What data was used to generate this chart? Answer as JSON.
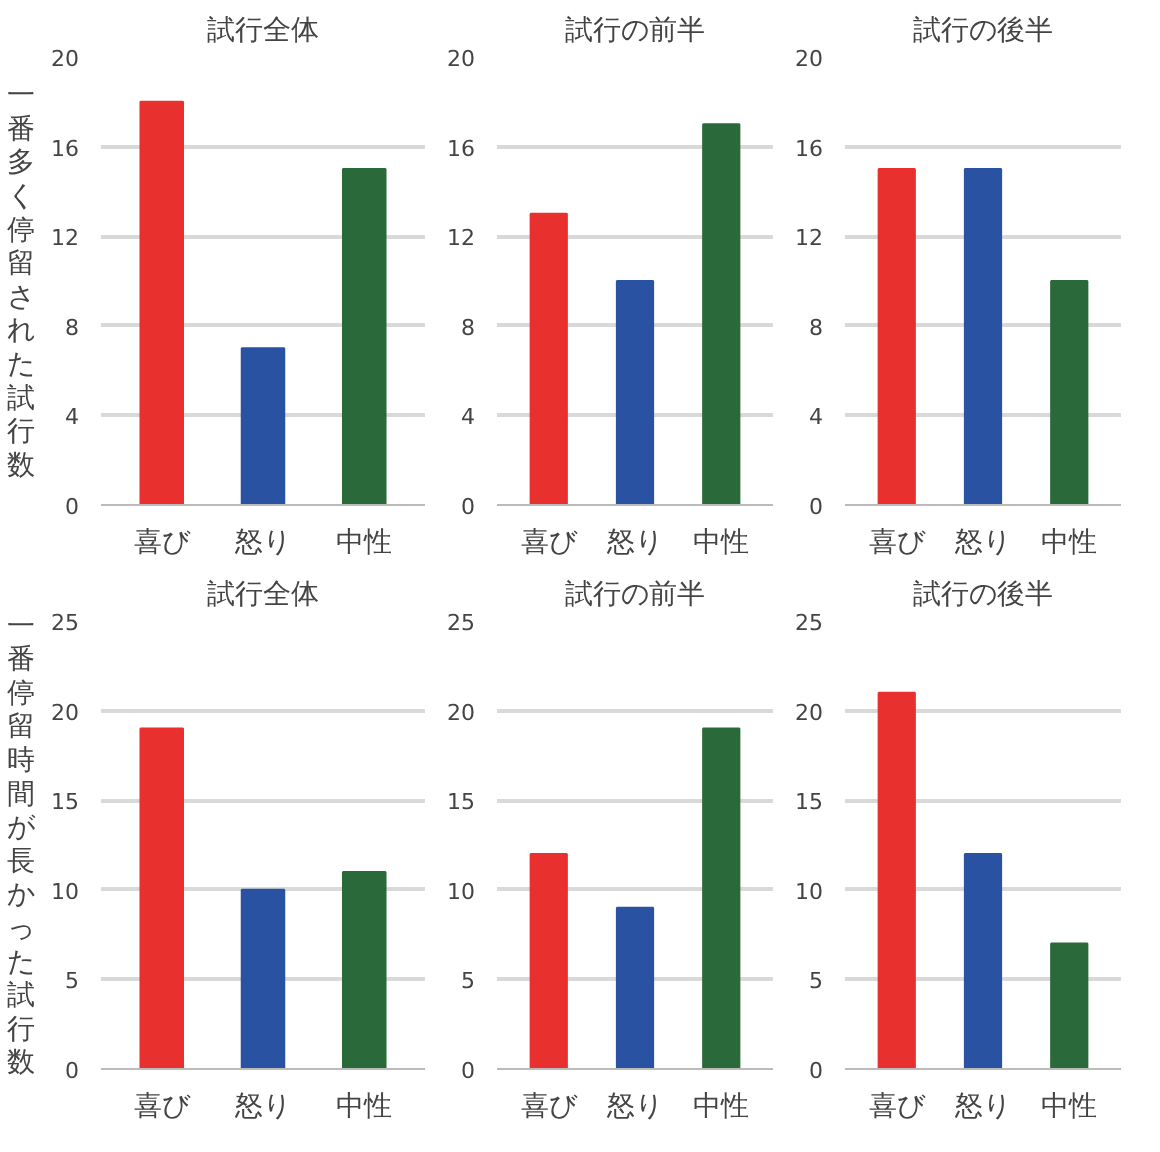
{
  "chart_data": [
    {
      "type": "bar",
      "title": "試行全体",
      "ylabel": "一番多く停留された試行数",
      "categories": [
        "喜び",
        "怒り",
        "中性"
      ],
      "values": [
        18,
        7,
        15
      ],
      "colors": [
        "#e8302e",
        "#2a52a3",
        "#2a6a3a"
      ],
      "ylim": [
        0,
        20
      ],
      "yticks": [
        0,
        4,
        8,
        12,
        16,
        20
      ],
      "grid": "y"
    },
    {
      "type": "bar",
      "title": "試行の前半",
      "categories": [
        "喜び",
        "怒り",
        "中性"
      ],
      "values": [
        13,
        10,
        17
      ],
      "colors": [
        "#e8302e",
        "#2a52a3",
        "#2a6a3a"
      ],
      "ylim": [
        0,
        20
      ],
      "yticks": [
        0,
        4,
        8,
        12,
        16,
        20
      ],
      "grid": "y"
    },
    {
      "type": "bar",
      "title": "試行の後半",
      "categories": [
        "喜び",
        "怒り",
        "中性"
      ],
      "values": [
        15,
        15,
        10
      ],
      "colors": [
        "#e8302e",
        "#2a52a3",
        "#2a6a3a"
      ],
      "ylim": [
        0,
        20
      ],
      "yticks": [
        0,
        4,
        8,
        12,
        16,
        20
      ],
      "grid": "y"
    },
    {
      "type": "bar",
      "title": "試行全体",
      "ylabel": "一番停留時間が長かった試行数",
      "categories": [
        "喜び",
        "怒り",
        "中性"
      ],
      "values": [
        19,
        10,
        11
      ],
      "colors": [
        "#e8302e",
        "#2a52a3",
        "#2a6a3a"
      ],
      "ylim": [
        0,
        25
      ],
      "yticks": [
        0,
        5,
        10,
        15,
        20,
        25
      ],
      "grid": "y"
    },
    {
      "type": "bar",
      "title": "試行の前半",
      "categories": [
        "喜び",
        "怒り",
        "中性"
      ],
      "values": [
        12,
        9,
        19
      ],
      "colors": [
        "#e8302e",
        "#2a52a3",
        "#2a6a3a"
      ],
      "ylim": [
        0,
        25
      ],
      "yticks": [
        0,
        5,
        10,
        15,
        20,
        25
      ],
      "grid": "y"
    },
    {
      "type": "bar",
      "title": "試行の後半",
      "categories": [
        "喜び",
        "怒り",
        "中性"
      ],
      "values": [
        21,
        12,
        7
      ],
      "colors": [
        "#e8302e",
        "#2a52a3",
        "#2a6a3a"
      ],
      "ylim": [
        0,
        25
      ],
      "yticks": [
        0,
        5,
        10,
        15,
        20,
        25
      ],
      "grid": "y"
    }
  ]
}
